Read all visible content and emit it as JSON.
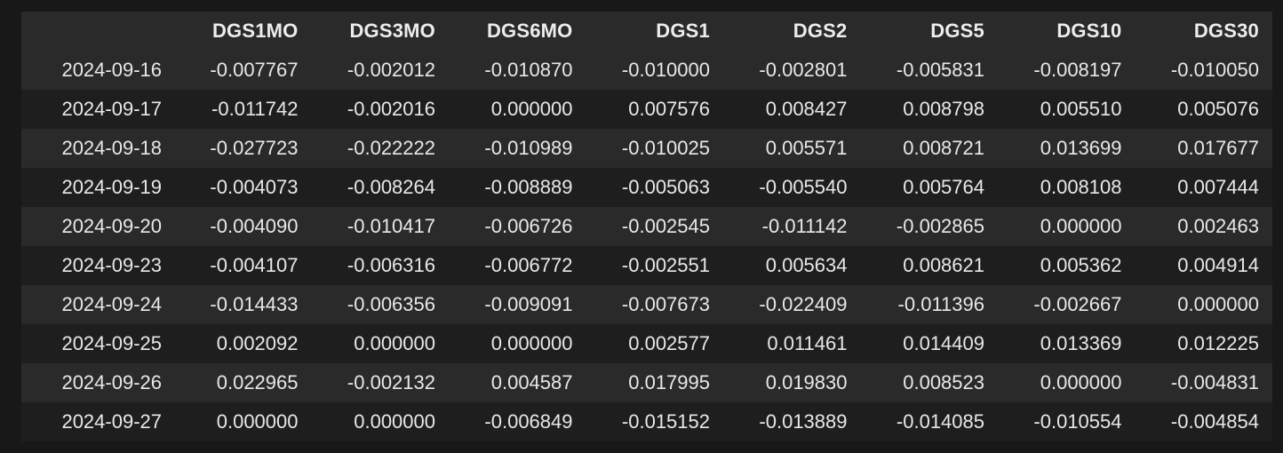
{
  "table": {
    "columns": [
      "",
      "DGS1MO",
      "DGS3MO",
      "DGS6MO",
      "DGS1",
      "DGS2",
      "DGS5",
      "DGS10",
      "DGS30"
    ],
    "rows": [
      {
        "index": "2024-09-16",
        "values": [
          "-0.007767",
          "-0.002012",
          "-0.010870",
          "-0.010000",
          "-0.002801",
          "-0.005831",
          "-0.008197",
          "-0.010050"
        ]
      },
      {
        "index": "2024-09-17",
        "values": [
          "-0.011742",
          "-0.002016",
          "0.000000",
          "0.007576",
          "0.008427",
          "0.008798",
          "0.005510",
          "0.005076"
        ]
      },
      {
        "index": "2024-09-18",
        "values": [
          "-0.027723",
          "-0.022222",
          "-0.010989",
          "-0.010025",
          "0.005571",
          "0.008721",
          "0.013699",
          "0.017677"
        ]
      },
      {
        "index": "2024-09-19",
        "values": [
          "-0.004073",
          "-0.008264",
          "-0.008889",
          "-0.005063",
          "-0.005540",
          "0.005764",
          "0.008108",
          "0.007444"
        ]
      },
      {
        "index": "2024-09-20",
        "values": [
          "-0.004090",
          "-0.010417",
          "-0.006726",
          "-0.002545",
          "-0.011142",
          "-0.002865",
          "0.000000",
          "0.002463"
        ]
      },
      {
        "index": "2024-09-23",
        "values": [
          "-0.004107",
          "-0.006316",
          "-0.006772",
          "-0.002551",
          "0.005634",
          "0.008621",
          "0.005362",
          "0.004914"
        ]
      },
      {
        "index": "2024-09-24",
        "values": [
          "-0.014433",
          "-0.006356",
          "-0.009091",
          "-0.007673",
          "-0.022409",
          "-0.011396",
          "-0.002667",
          "0.000000"
        ]
      },
      {
        "index": "2024-09-25",
        "values": [
          "0.002092",
          "0.000000",
          "0.000000",
          "0.002577",
          "0.011461",
          "0.014409",
          "0.013369",
          "0.012225"
        ]
      },
      {
        "index": "2024-09-26",
        "values": [
          "0.022965",
          "-0.002132",
          "0.004587",
          "0.017995",
          "0.019830",
          "0.008523",
          "0.000000",
          "-0.004831"
        ]
      },
      {
        "index": "2024-09-27",
        "values": [
          "0.000000",
          "0.000000",
          "-0.006849",
          "-0.015152",
          "-0.013889",
          "-0.014085",
          "-0.010554",
          "-0.004854"
        ]
      }
    ]
  },
  "colors": {
    "background": "#181818",
    "row_odd": "#2a2a2a",
    "row_even": "#1e1e1e",
    "text": "#e8e8e8"
  }
}
